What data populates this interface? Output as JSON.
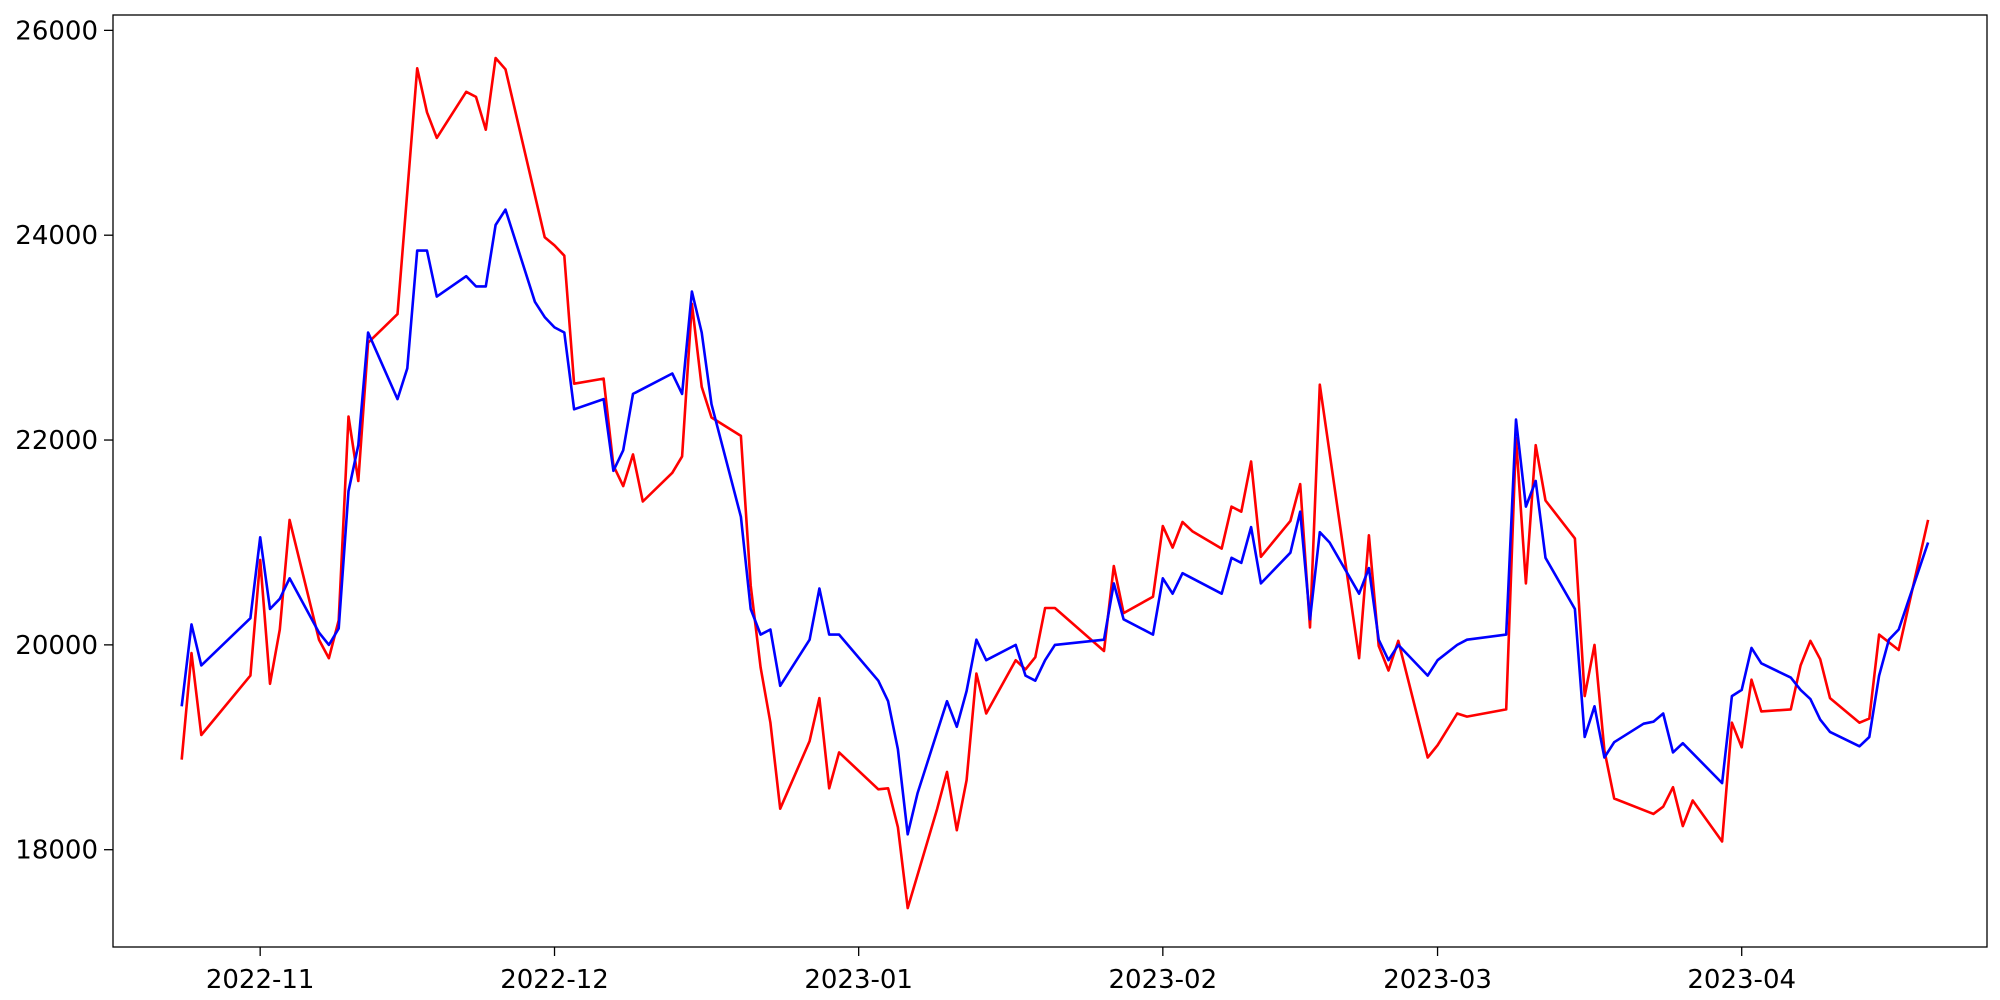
{
  "chart_data": {
    "type": "line",
    "title": "",
    "xlabel": "",
    "ylabel": "",
    "x_is_date": true,
    "xlim": [
      "2022-10-17",
      "2023-04-26"
    ],
    "ylim": [
      17050,
      26150
    ],
    "grid": false,
    "legend": "none",
    "xticks": [
      {
        "value": "2022-11-01",
        "label": "2022-11"
      },
      {
        "value": "2022-12-01",
        "label": "2022-12"
      },
      {
        "value": "2023-01-01",
        "label": "2023-01"
      },
      {
        "value": "2023-02-01",
        "label": "2023-02"
      },
      {
        "value": "2023-03-01",
        "label": "2023-03"
      },
      {
        "value": "2023-04-01",
        "label": "2023-04"
      }
    ],
    "yticks": [
      {
        "value": 18000,
        "label": "18000"
      },
      {
        "value": 20000,
        "label": "20000"
      },
      {
        "value": 22000,
        "label": "22000"
      },
      {
        "value": 24000,
        "label": "24000"
      },
      {
        "value": 26000,
        "label": "26000"
      }
    ],
    "series": [
      {
        "color": "#ff0000",
        "points": [
          [
            "2022-10-24",
            18880
          ],
          [
            "2022-10-25",
            19920
          ],
          [
            "2022-10-26",
            19120
          ],
          [
            "2022-10-31",
            19700
          ],
          [
            "2022-11-01",
            20830
          ],
          [
            "2022-11-02",
            19620
          ],
          [
            "2022-11-03",
            20150
          ],
          [
            "2022-11-04",
            21220
          ],
          [
            "2022-11-07",
            20050
          ],
          [
            "2022-11-08",
            19870
          ],
          [
            "2022-11-09",
            20240
          ],
          [
            "2022-11-10",
            22230
          ],
          [
            "2022-11-11",
            21600
          ],
          [
            "2022-11-12",
            22950
          ],
          [
            "2022-11-15",
            23230
          ],
          [
            "2022-11-17",
            25630
          ],
          [
            "2022-11-18",
            25200
          ],
          [
            "2022-11-19",
            24950
          ],
          [
            "2022-11-22",
            25400
          ],
          [
            "2022-11-23",
            25350
          ],
          [
            "2022-11-24",
            25030
          ],
          [
            "2022-11-25",
            25730
          ],
          [
            "2022-11-26",
            25620
          ],
          [
            "2022-11-30",
            23980
          ],
          [
            "2022-12-01",
            23900
          ],
          [
            "2022-12-02",
            23800
          ],
          [
            "2022-12-03",
            22550
          ],
          [
            "2022-12-06",
            22600
          ],
          [
            "2022-12-07",
            21750
          ],
          [
            "2022-12-08",
            21550
          ],
          [
            "2022-12-09",
            21860
          ],
          [
            "2022-12-10",
            21400
          ],
          [
            "2022-12-13",
            21680
          ],
          [
            "2022-12-14",
            21840
          ],
          [
            "2022-12-15",
            23330
          ],
          [
            "2022-12-16",
            22520
          ],
          [
            "2022-12-17",
            22220
          ],
          [
            "2022-12-20",
            22040
          ],
          [
            "2022-12-21",
            20580
          ],
          [
            "2022-12-22",
            19780
          ],
          [
            "2022-12-23",
            19240
          ],
          [
            "2022-12-24",
            18400
          ],
          [
            "2022-12-27",
            19060
          ],
          [
            "2022-12-28",
            19480
          ],
          [
            "2022-12-29",
            18600
          ],
          [
            "2022-12-30",
            18950
          ],
          [
            "2023-01-03",
            18590
          ],
          [
            "2023-01-04",
            18600
          ],
          [
            "2023-01-05",
            18220
          ],
          [
            "2023-01-06",
            17430
          ],
          [
            "2023-01-09",
            18400
          ],
          [
            "2023-01-10",
            18760
          ],
          [
            "2023-01-11",
            18190
          ],
          [
            "2023-01-12",
            18680
          ],
          [
            "2023-01-13",
            19720
          ],
          [
            "2023-01-14",
            19330
          ],
          [
            "2023-01-17",
            19850
          ],
          [
            "2023-01-18",
            19760
          ],
          [
            "2023-01-19",
            19880
          ],
          [
            "2023-01-20",
            20360
          ],
          [
            "2023-01-21",
            20360
          ],
          [
            "2023-01-26",
            19940
          ],
          [
            "2023-01-27",
            20770
          ],
          [
            "2023-01-28",
            20310
          ],
          [
            "2023-01-31",
            20470
          ],
          [
            "2023-02-01",
            21160
          ],
          [
            "2023-02-02",
            20950
          ],
          [
            "2023-02-03",
            21200
          ],
          [
            "2023-02-04",
            21110
          ],
          [
            "2023-02-07",
            20940
          ],
          [
            "2023-02-08",
            21350
          ],
          [
            "2023-02-09",
            21300
          ],
          [
            "2023-02-10",
            21790
          ],
          [
            "2023-02-11",
            20860
          ],
          [
            "2023-02-14",
            21210
          ],
          [
            "2023-02-15",
            21570
          ],
          [
            "2023-02-16",
            20170
          ],
          [
            "2023-02-17",
            22540
          ],
          [
            "2023-02-21",
            19870
          ],
          [
            "2023-02-22",
            21070
          ],
          [
            "2023-02-23",
            19990
          ],
          [
            "2023-02-24",
            19750
          ],
          [
            "2023-02-25",
            20040
          ],
          [
            "2023-02-28",
            18900
          ],
          [
            "2023-03-01",
            19020
          ],
          [
            "2023-03-03",
            19330
          ],
          [
            "2023-03-04",
            19300
          ],
          [
            "2023-03-08",
            19370
          ],
          [
            "2023-03-09",
            22020
          ],
          [
            "2023-03-10",
            20600
          ],
          [
            "2023-03-11",
            21950
          ],
          [
            "2023-03-12",
            21410
          ],
          [
            "2023-03-15",
            21040
          ],
          [
            "2023-03-16",
            19500
          ],
          [
            "2023-03-17",
            20000
          ],
          [
            "2023-03-18",
            18970
          ],
          [
            "2023-03-19",
            18500
          ],
          [
            "2023-03-23",
            18350
          ],
          [
            "2023-03-24",
            18420
          ],
          [
            "2023-03-25",
            18610
          ],
          [
            "2023-03-26",
            18230
          ],
          [
            "2023-03-27",
            18480
          ],
          [
            "2023-03-30",
            18080
          ],
          [
            "2023-03-31",
            19240
          ],
          [
            "2023-04-01",
            19000
          ],
          [
            "2023-04-02",
            19660
          ],
          [
            "2023-04-03",
            19350
          ],
          [
            "2023-04-06",
            19370
          ],
          [
            "2023-04-07",
            19800
          ],
          [
            "2023-04-08",
            20040
          ],
          [
            "2023-04-09",
            19860
          ],
          [
            "2023-04-10",
            19480
          ],
          [
            "2023-04-13",
            19240
          ],
          [
            "2023-04-14",
            19280
          ],
          [
            "2023-04-15",
            20100
          ],
          [
            "2023-04-17",
            19950
          ],
          [
            "2023-04-20",
            21220
          ]
        ]
      },
      {
        "color": "#0000ff",
        "points": [
          [
            "2022-10-24",
            19400
          ],
          [
            "2022-10-25",
            20200
          ],
          [
            "2022-10-26",
            19800
          ],
          [
            "2022-10-31",
            20260
          ],
          [
            "2022-11-01",
            21050
          ],
          [
            "2022-11-02",
            20350
          ],
          [
            "2022-11-03",
            20450
          ],
          [
            "2022-11-04",
            20650
          ],
          [
            "2022-11-07",
            20120
          ],
          [
            "2022-11-08",
            20000
          ],
          [
            "2022-11-09",
            20160
          ],
          [
            "2022-11-10",
            21500
          ],
          [
            "2022-11-11",
            21950
          ],
          [
            "2022-11-12",
            23050
          ],
          [
            "2022-11-15",
            22400
          ],
          [
            "2022-11-16",
            22700
          ],
          [
            "2022-11-17",
            23850
          ],
          [
            "2022-11-18",
            23850
          ],
          [
            "2022-11-19",
            23400
          ],
          [
            "2022-11-22",
            23600
          ],
          [
            "2022-11-23",
            23500
          ],
          [
            "2022-11-24",
            23500
          ],
          [
            "2022-11-25",
            24100
          ],
          [
            "2022-11-26",
            24250
          ],
          [
            "2022-11-29",
            23350
          ],
          [
            "2022-11-30",
            23200
          ],
          [
            "2022-12-01",
            23100
          ],
          [
            "2022-12-02",
            23050
          ],
          [
            "2022-12-03",
            22300
          ],
          [
            "2022-12-06",
            22400
          ],
          [
            "2022-12-07",
            21700
          ],
          [
            "2022-12-08",
            21900
          ],
          [
            "2022-12-09",
            22450
          ],
          [
            "2022-12-13",
            22650
          ],
          [
            "2022-12-14",
            22450
          ],
          [
            "2022-12-15",
            23450
          ],
          [
            "2022-12-16",
            23050
          ],
          [
            "2022-12-17",
            22350
          ],
          [
            "2022-12-20",
            21250
          ],
          [
            "2022-12-21",
            20350
          ],
          [
            "2022-12-22",
            20100
          ],
          [
            "2022-12-23",
            20150
          ],
          [
            "2022-12-24",
            19600
          ],
          [
            "2022-12-27",
            20050
          ],
          [
            "2022-12-28",
            20550
          ],
          [
            "2022-12-29",
            20100
          ],
          [
            "2022-12-30",
            20100
          ],
          [
            "2023-01-03",
            19650
          ],
          [
            "2023-01-04",
            19450
          ],
          [
            "2023-01-05",
            18980
          ],
          [
            "2023-01-06",
            18150
          ],
          [
            "2023-01-07",
            18550
          ],
          [
            "2023-01-10",
            19450
          ],
          [
            "2023-01-11",
            19200
          ],
          [
            "2023-01-12",
            19550
          ],
          [
            "2023-01-13",
            20050
          ],
          [
            "2023-01-14",
            19850
          ],
          [
            "2023-01-17",
            20000
          ],
          [
            "2023-01-18",
            19700
          ],
          [
            "2023-01-19",
            19650
          ],
          [
            "2023-01-20",
            19850
          ],
          [
            "2023-01-21",
            20000
          ],
          [
            "2023-01-26",
            20050
          ],
          [
            "2023-01-27",
            20600
          ],
          [
            "2023-01-28",
            20250
          ],
          [
            "2023-01-31",
            20100
          ],
          [
            "2023-02-01",
            20650
          ],
          [
            "2023-02-02",
            20500
          ],
          [
            "2023-02-03",
            20700
          ],
          [
            "2023-02-07",
            20500
          ],
          [
            "2023-02-08",
            20850
          ],
          [
            "2023-02-09",
            20800
          ],
          [
            "2023-02-10",
            21150
          ],
          [
            "2023-02-11",
            20600
          ],
          [
            "2023-02-14",
            20900
          ],
          [
            "2023-02-15",
            21300
          ],
          [
            "2023-02-16",
            20250
          ],
          [
            "2023-02-17",
            21100
          ],
          [
            "2023-02-18",
            21000
          ],
          [
            "2023-02-21",
            20500
          ],
          [
            "2023-02-22",
            20750
          ],
          [
            "2023-02-23",
            20050
          ],
          [
            "2023-02-24",
            19850
          ],
          [
            "2023-02-25",
            20000
          ],
          [
            "2023-02-28",
            19700
          ],
          [
            "2023-03-01",
            19850
          ],
          [
            "2023-03-03",
            20000
          ],
          [
            "2023-03-04",
            20050
          ],
          [
            "2023-03-08",
            20100
          ],
          [
            "2023-03-09",
            22200
          ],
          [
            "2023-03-10",
            21350
          ],
          [
            "2023-03-11",
            21600
          ],
          [
            "2023-03-12",
            20850
          ],
          [
            "2023-03-15",
            20350
          ],
          [
            "2023-03-16",
            19100
          ],
          [
            "2023-03-17",
            19400
          ],
          [
            "2023-03-18",
            18900
          ],
          [
            "2023-03-19",
            19050
          ],
          [
            "2023-03-22",
            19230
          ],
          [
            "2023-03-23",
            19250
          ],
          [
            "2023-03-24",
            19330
          ],
          [
            "2023-03-25",
            18950
          ],
          [
            "2023-03-26",
            19040
          ],
          [
            "2023-03-30",
            18650
          ],
          [
            "2023-03-31",
            19500
          ],
          [
            "2023-04-01",
            19560
          ],
          [
            "2023-04-02",
            19970
          ],
          [
            "2023-04-03",
            19820
          ],
          [
            "2023-04-06",
            19680
          ],
          [
            "2023-04-07",
            19560
          ],
          [
            "2023-04-08",
            19470
          ],
          [
            "2023-04-09",
            19270
          ],
          [
            "2023-04-10",
            19150
          ],
          [
            "2023-04-13",
            19010
          ],
          [
            "2023-04-14",
            19100
          ],
          [
            "2023-04-15",
            19700
          ],
          [
            "2023-04-16",
            20050
          ],
          [
            "2023-04-17",
            20150
          ],
          [
            "2023-04-20",
            21000
          ]
        ]
      }
    ]
  }
}
